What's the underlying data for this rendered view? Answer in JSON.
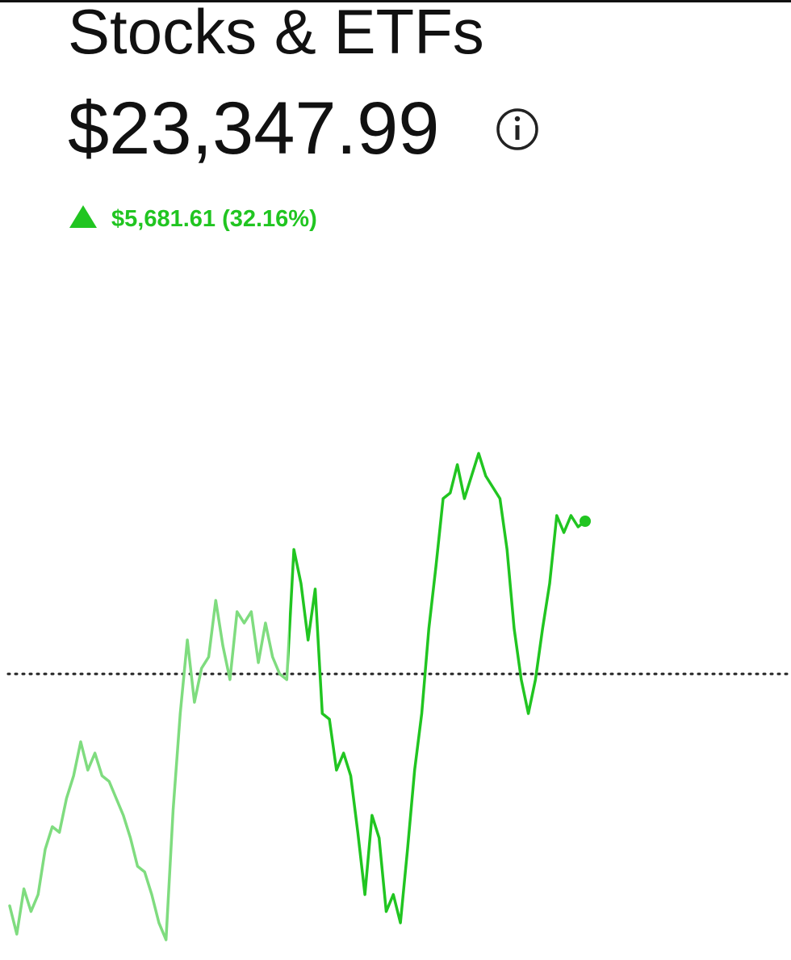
{
  "header": {
    "title": "Stocks & ETFs",
    "value": "$23,347.99",
    "change": "$5,681.61 (32.16%)"
  },
  "chart_data": {
    "type": "line",
    "color": "#21c521",
    "ylim": [
      0,
      100
    ],
    "baseline": 48,
    "values": [
      7,
      2,
      10,
      6,
      9,
      17,
      21,
      20,
      26,
      30,
      36,
      31,
      34,
      30,
      29,
      26,
      23,
      19,
      14,
      13,
      9,
      4,
      1,
      24,
      41,
      54,
      43,
      49,
      51,
      61,
      53,
      47,
      59,
      57,
      59,
      50,
      57,
      51,
      48,
      47,
      70,
      64,
      54,
      63,
      41,
      40,
      31,
      34,
      30,
      20,
      9,
      23,
      19,
      6,
      9,
      4,
      17,
      31,
      41,
      56,
      67,
      79,
      80,
      85,
      79,
      83,
      87,
      83,
      81,
      79,
      70,
      56,
      47,
      41,
      47,
      56,
      64,
      76,
      73,
      76,
      74,
      75
    ]
  }
}
